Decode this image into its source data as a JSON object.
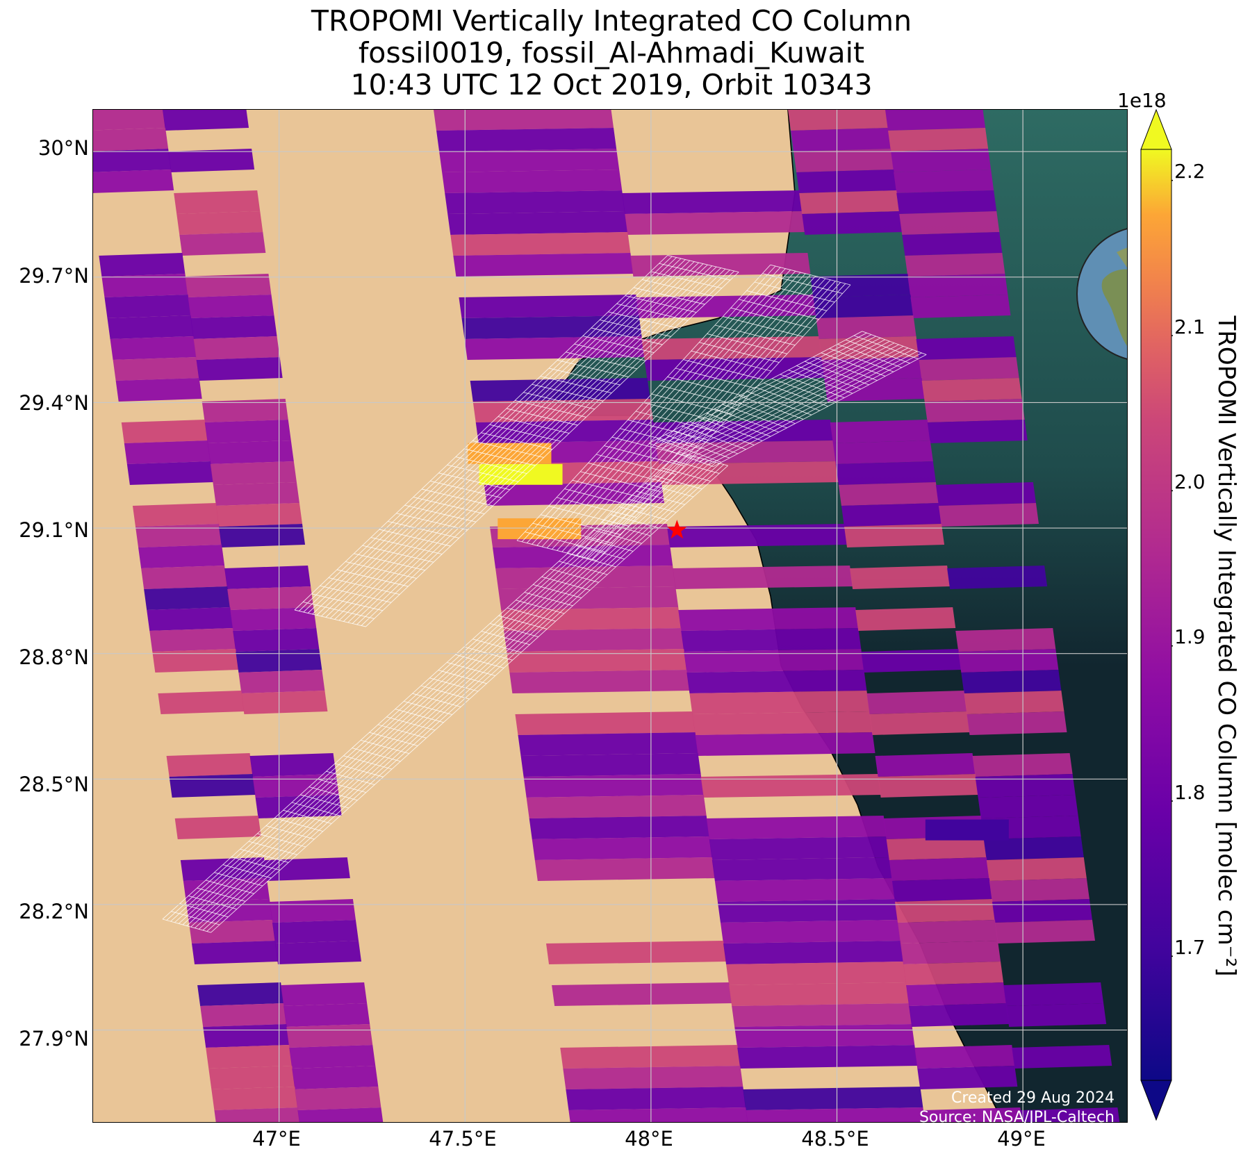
{
  "title": {
    "line1": "TROPOMI Vertically Integrated CO Column",
    "line2": "fossil0019, fossil_Al-Ahmadi_Kuwait",
    "line3": "10:43 UTC 12 Oct 2019, Orbit 10343"
  },
  "map": {
    "lon_range": [
      46.5,
      49.28
    ],
    "lat_range": [
      27.68,
      30.1
    ],
    "lat_ticks": [
      "30°N",
      "29.7°N",
      "29.4°N",
      "29.1°N",
      "28.8°N",
      "28.5°N",
      "28.2°N",
      "27.9°N"
    ],
    "lat_tick_values": [
      30.0,
      29.7,
      29.4,
      29.1,
      28.8,
      28.5,
      28.2,
      27.9
    ],
    "lon_ticks": [
      "47°E",
      "47.5°E",
      "48°E",
      "48.5°E",
      "49°E"
    ],
    "lon_tick_values": [
      47.0,
      47.5,
      48.0,
      48.5,
      49.0
    ],
    "grid": true,
    "target_marker": {
      "lon": 48.07,
      "lat": 29.095,
      "symbol": "star",
      "color": "#ff0000"
    },
    "colors": {
      "land": "#e9c597",
      "sea": "#11262f",
      "shallow_sea": "#2f6b62",
      "grid_overlay": "#ffffff"
    }
  },
  "colorbar": {
    "colormap": "plasma",
    "range": [
      1.62e+18,
      2.22e+18
    ],
    "exponent_label": "1e18",
    "ticks": [
      "2.2",
      "2.1",
      "2.0",
      "1.9",
      "1.8",
      "1.7"
    ],
    "tick_values": [
      2.2,
      2.1,
      2.0,
      1.9,
      1.8,
      1.7
    ],
    "label": "TROPOMI Vertically Integrated CO Column [molec cm⁻²]",
    "extend": "both"
  },
  "credits": {
    "created": "Created 29 Aug 2024",
    "source": "Source: NASA/JPL-Caltech"
  },
  "inset": {
    "type": "globe",
    "marker": "star",
    "marker_color": "#ff0000"
  },
  "chart_data": {
    "type": "heatmap",
    "title": "TROPOMI Vertically Integrated CO Column",
    "subtitle": "fossil0019, fossil_Al-Ahmadi_Kuwait / 10:43 UTC 12 Oct 2019, Orbit 10343",
    "xlabel": "",
    "ylabel": "",
    "xlim": [
      46.5,
      49.28
    ],
    "ylim": [
      27.68,
      30.1
    ],
    "value_label": "TROPOMI Vertically Integrated CO Column [molec cm⁻²]",
    "value_range": [
      1.62e+18,
      2.22e+18
    ],
    "notable_values": [
      {
        "lon": 47.65,
        "lat": 29.23,
        "value": 2.2e+18
      },
      {
        "lon": 47.62,
        "lat": 29.28,
        "value": 2.13e+18
      },
      {
        "lon": 47.7,
        "lat": 29.1,
        "value": 2.12e+18
      },
      {
        "lon": 48.85,
        "lat": 28.38,
        "value": 1.68e+18
      }
    ]
  }
}
